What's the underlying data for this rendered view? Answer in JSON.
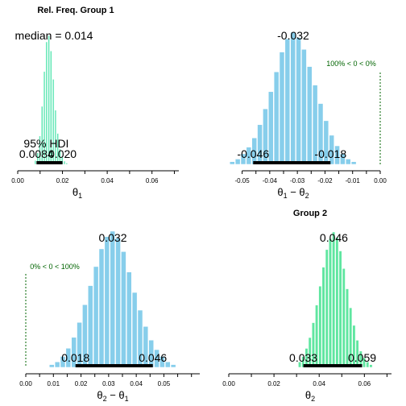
{
  "chart_data": [
    {
      "type": "bar",
      "title": "Rel. Freq. Group 1",
      "xlabel": "θ1",
      "xlim": [
        0.0,
        0.072
      ],
      "x_ticks": [
        "0.00",
        "0.02",
        "0.04",
        "0.06"
      ],
      "center_label": "median = 0.014",
      "hdi_label": "95% HDI",
      "hdi_low_label": "0.0084",
      "hdi_high_label": "0.020",
      "hdi": [
        0.0084,
        0.02
      ],
      "bar_color": "#5fe6b4",
      "bins": [
        0.008,
        0.009,
        0.01,
        0.011,
        0.012,
        0.013,
        0.014,
        0.015,
        0.016,
        0.017,
        0.018,
        0.019,
        0.02,
        0.021,
        0.022
      ],
      "values": [
        0.03,
        0.09,
        0.22,
        0.45,
        0.72,
        0.95,
        1.0,
        0.88,
        0.66,
        0.42,
        0.24,
        0.12,
        0.06,
        0.025,
        0.01
      ]
    },
    {
      "type": "bar",
      "title": "",
      "xlabel": "θ1 − θ2",
      "xlim": [
        -0.063,
        0.0
      ],
      "x_ticks": [
        "-0.05",
        "-0.04",
        "-0.03",
        "-0.02",
        "-0.01",
        "0.00"
      ],
      "center_label": "-0.032",
      "hdi_low_label": "-0.046",
      "hdi_high_label": "-0.018",
      "hdi": [
        -0.046,
        -0.018
      ],
      "rope_label": "100% < 0 < 0%",
      "compare_value": 0.0,
      "bar_color": "#87ceeb",
      "bins": [
        -0.0535,
        -0.0515,
        -0.0495,
        -0.0475,
        -0.0455,
        -0.0435,
        -0.0415,
        -0.0395,
        -0.0375,
        -0.0355,
        -0.0335,
        -0.0315,
        -0.0295,
        -0.0275,
        -0.0255,
        -0.0235,
        -0.0215,
        -0.0195,
        -0.0175,
        -0.0155,
        -0.0135,
        -0.0115,
        -0.0095
      ],
      "values": [
        0.02,
        0.04,
        0.08,
        0.13,
        0.2,
        0.3,
        0.42,
        0.55,
        0.7,
        0.85,
        0.95,
        1.0,
        0.96,
        0.87,
        0.74,
        0.6,
        0.46,
        0.33,
        0.22,
        0.14,
        0.08,
        0.04,
        0.02
      ]
    },
    {
      "type": "bar",
      "title": "",
      "xlabel": "θ2 − θ1",
      "xlim": [
        0.0,
        0.063
      ],
      "x_ticks": [
        "0.00",
        "0.01",
        "0.02",
        "0.03",
        "0.04",
        "0.05"
      ],
      "center_label": "0.032",
      "hdi_low_label": "0.018",
      "hdi_high_label": "0.046",
      "hdi": [
        0.018,
        0.046
      ],
      "rope_label": "0% < 0 < 100%",
      "compare_value": 0.0,
      "bar_color": "#87ceeb",
      "bins": [
        0.0095,
        0.0115,
        0.0135,
        0.0155,
        0.0175,
        0.0195,
        0.0215,
        0.0235,
        0.0255,
        0.0275,
        0.0295,
        0.0315,
        0.0335,
        0.0355,
        0.0375,
        0.0395,
        0.0415,
        0.0435,
        0.0455,
        0.0475,
        0.0495,
        0.0515,
        0.0535
      ],
      "values": [
        0.02,
        0.04,
        0.08,
        0.14,
        0.22,
        0.33,
        0.46,
        0.6,
        0.74,
        0.87,
        0.96,
        1.0,
        0.95,
        0.85,
        0.7,
        0.55,
        0.42,
        0.3,
        0.2,
        0.13,
        0.08,
        0.04,
        0.02
      ]
    },
    {
      "type": "bar",
      "title": "Group 2",
      "xlabel": "θ2",
      "xlim": [
        0.0,
        0.072
      ],
      "x_ticks": [
        "0.00",
        "0.02",
        "0.04",
        "0.06"
      ],
      "center_label": "0.046",
      "hdi_low_label": "0.033",
      "hdi_high_label": "0.059",
      "hdi": [
        0.033,
        0.059
      ],
      "bar_color": "#5fe6a0",
      "bins": [
        0.0315,
        0.033,
        0.0345,
        0.036,
        0.0375,
        0.039,
        0.0405,
        0.042,
        0.0435,
        0.045,
        0.0465,
        0.048,
        0.0495,
        0.051,
        0.0525,
        0.054,
        0.0555,
        0.057,
        0.0585,
        0.06,
        0.0615,
        0.063
      ],
      "values": [
        0.04,
        0.08,
        0.14,
        0.22,
        0.33,
        0.46,
        0.6,
        0.74,
        0.87,
        0.95,
        1.0,
        0.96,
        0.86,
        0.73,
        0.58,
        0.44,
        0.31,
        0.2,
        0.12,
        0.07,
        0.04,
        0.02
      ]
    }
  ]
}
